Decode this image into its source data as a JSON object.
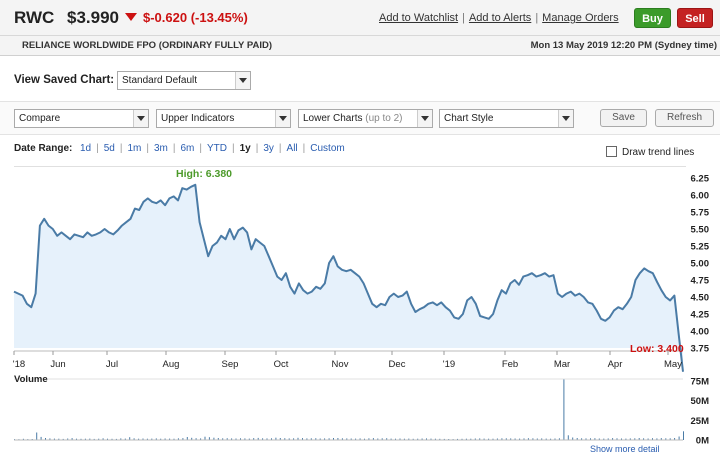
{
  "header": {
    "ticker": "RWC",
    "price": "$3.990",
    "change": "$-0.620 (-13.45%)",
    "links": [
      "Add to Watchlist",
      "Add to Alerts",
      "Manage Orders"
    ],
    "buy_label": "Buy",
    "sell_label": "Sell",
    "colors": {
      "buy": "#3b9b2a",
      "sell": "#c42222",
      "negative": "#cc1111"
    }
  },
  "subheader": {
    "company": "RELIANCE WORLDWIDE FPO (ORDINARY FULLY PAID)",
    "timestamp": "Mon 13 May 2019 12:20 PM (Sydney time)"
  },
  "controls": {
    "saved_chart_label": "View Saved Chart:",
    "saved_chart_value": "Standard Default",
    "compare": "Compare",
    "upper_indicators": "Upper Indicators",
    "lower_charts": "Lower Charts",
    "lower_charts_hint": "(up to 2)",
    "chart_style": "Chart Style",
    "save_label": "Save",
    "refresh_label": "Refresh"
  },
  "date_range": {
    "label": "Date Range:",
    "options": [
      "1d",
      "5d",
      "1m",
      "3m",
      "6m",
      "YTD",
      "1y",
      "3y",
      "All",
      "Custom"
    ],
    "active": "1y",
    "trend_label": "Draw trend lines",
    "trend_checked": false
  },
  "bottom_text": "Show more detail",
  "chart_data": [
    {
      "type": "area",
      "x_labels": [
        "'18",
        "Jun",
        "Jul",
        "Aug",
        "Sep",
        "Oct",
        "Nov",
        "Dec",
        "'19",
        "Feb",
        "Mar",
        "Apr",
        "May"
      ],
      "ylim": [
        3.75,
        6.25
      ],
      "y_ticks": [
        "6.25",
        "6.00",
        "5.75",
        "5.50",
        "5.25",
        "5.00",
        "4.75",
        "4.50",
        "4.25",
        "4.00",
        "3.75"
      ],
      "high_label": "High: 6.380",
      "low_label": "Low: 3.400",
      "colors": {
        "line": "#4a7ba6",
        "fill": "#e6f1fb",
        "high": "#4c9a2a",
        "low": "#cc1111"
      },
      "values": [
        4.58,
        4.55,
        4.52,
        4.4,
        4.35,
        4.55,
        5.55,
        5.65,
        5.55,
        5.5,
        5.4,
        5.45,
        5.4,
        5.35,
        5.42,
        5.4,
        5.38,
        5.45,
        5.4,
        5.42,
        5.45,
        5.5,
        5.45,
        5.42,
        5.48,
        5.55,
        5.6,
        5.65,
        5.8,
        5.78,
        5.9,
        5.95,
        5.9,
        5.88,
        5.92,
        5.85,
        5.95,
        5.98,
        5.92,
        6.1,
        6.08,
        6.12,
        6.15,
        5.6,
        5.35,
        5.1,
        5.25,
        5.3,
        5.4,
        5.35,
        5.5,
        5.35,
        5.48,
        5.52,
        5.45,
        5.2,
        5.35,
        5.3,
        5.25,
        5.1,
        4.95,
        4.8,
        4.75,
        4.85,
        4.65,
        4.55,
        4.7,
        4.6,
        4.55,
        4.58,
        4.65,
        4.62,
        4.7,
        5.0,
        5.1,
        4.95,
        4.9,
        4.88,
        4.9,
        4.85,
        4.8,
        4.7,
        4.55,
        4.4,
        4.35,
        4.4,
        4.38,
        4.5,
        4.55,
        4.5,
        4.52,
        4.58,
        4.4,
        4.28,
        4.32,
        4.35,
        4.4,
        4.42,
        4.38,
        4.42,
        4.35,
        4.3,
        4.2,
        4.18,
        4.25,
        4.45,
        4.5,
        4.4,
        4.22,
        4.2,
        4.18,
        4.25,
        4.45,
        4.6,
        4.55,
        4.7,
        4.75,
        4.68,
        4.8,
        4.82,
        4.85,
        4.8,
        4.82,
        4.85,
        4.8,
        4.82,
        4.55,
        4.5,
        4.55,
        4.58,
        4.52,
        4.55,
        4.5,
        4.42,
        4.4,
        4.3,
        4.18,
        4.15,
        4.2,
        4.3,
        4.35,
        4.32,
        4.4,
        4.5,
        4.75,
        4.85,
        4.92,
        4.88,
        4.85,
        4.72,
        4.6,
        4.5,
        4.45,
        4.52,
        3.95,
        3.4
      ]
    },
    {
      "type": "bar",
      "title": "Volume",
      "ylim": [
        0,
        75
      ],
      "y_ticks": [
        "75M",
        "50M",
        "25M",
        "0M"
      ],
      "colors": {
        "bar": "#4a7ba6"
      },
      "values": [
        1.2,
        1.0,
        1.5,
        1.1,
        1.3,
        9.5,
        4.0,
        2.5,
        2.0,
        1.8,
        1.6,
        1.4,
        1.9,
        2.4,
        1.7,
        1.5,
        1.6,
        1.8,
        1.4,
        1.7,
        2.2,
        1.6,
        1.5,
        1.4,
        2.0,
        1.8,
        3.5,
        2.2,
        1.7,
        1.9,
        1.6,
        1.8,
        2.0,
        1.7,
        1.9,
        1.8,
        1.7,
        2.1,
        2.4,
        3.8,
        2.8,
        2.3,
        2.0,
        4.2,
        3.5,
        2.9,
        2.5,
        2.1,
        2.3,
        2.0,
        1.9,
        2.2,
        2.0,
        1.8,
        2.4,
        2.7,
        2.2,
        2.0,
        2.1,
        2.9,
        2.6,
        2.3,
        2.0,
        2.2,
        2.8,
        2.4,
        2.0,
        2.1,
        2.3,
        1.9,
        2.0,
        2.2,
        2.5,
        2.6,
        2.1,
        2.0,
        1.9,
        1.8,
        2.0,
        1.7,
        2.2,
        2.4,
        1.9,
        2.1,
        2.3,
        1.8,
        1.7,
        1.9,
        1.6,
        1.8,
        1.5,
        1.7,
        1.9,
        2.0,
        1.8,
        1.6,
        1.5,
        1.4,
        1.3,
        1.2,
        1.4,
        1.5,
        1.6,
        1.7,
        1.9,
        2.0,
        1.8,
        1.6,
        1.7,
        1.9,
        2.1,
        2.2,
        2.0,
        1.9,
        1.8,
        2.0,
        2.3,
        2.1,
        1.9,
        2.0,
        1.8,
        1.7,
        1.9,
        2.1,
        78.0,
        6.0,
        3.2,
        2.5,
        2.2,
        2.0,
        2.1,
        2.3,
        1.9,
        1.8,
        2.0,
        2.4,
        2.2,
        1.9,
        1.8,
        2.0,
        2.2,
        2.5,
        2.1,
        1.9,
        2.3,
        2.0,
        2.4,
        2.2,
        2.1,
        2.5,
        4.5,
        11.0
      ]
    }
  ]
}
